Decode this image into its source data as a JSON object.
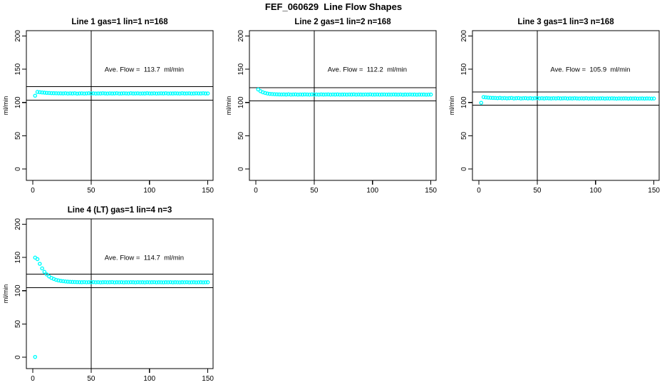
{
  "page": {
    "title": "FEF_060629  Line Flow Shapes"
  },
  "colors": {
    "marker": "#00ffff",
    "axis": "#000000",
    "background": "#ffffff"
  },
  "chart_data": [
    {
      "type": "scatter",
      "name": "line1",
      "title": "Line 1 gas=1 lin=1 n=168",
      "annotation": "Ave. Flow =  113.7  ml/min",
      "ave_flow": 113.7,
      "xlabel": "",
      "ylabel": "ml/min",
      "x_ticks": [
        0,
        50,
        100,
        150
      ],
      "y_ticks": [
        0,
        50,
        100,
        150,
        200
      ],
      "xlim": [
        -5.5,
        154.5
      ],
      "ylim": [
        -17,
        208
      ],
      "vline_x": 50,
      "hlines": [
        103.7,
        123.7
      ],
      "x_start": 2,
      "x_step": 2,
      "y_values": [
        110.2,
        115.9,
        115.5,
        115.1,
        114.8,
        114.5,
        114.3,
        114.1,
        114.0,
        113.9,
        113.8,
        113.8,
        113.7,
        113.9,
        113.5,
        113.8,
        113.6,
        113.9,
        113.4,
        113.7,
        113.8,
        113.5,
        113.7,
        113.9,
        113.6,
        113.8,
        113.5,
        113.7,
        113.6,
        113.9,
        113.7,
        113.5,
        113.8,
        113.6,
        113.7,
        113.9,
        113.5,
        113.6,
        113.8,
        113.7,
        113.5,
        113.9,
        113.6,
        113.7,
        113.8,
        113.5,
        113.7,
        113.6,
        113.9,
        113.7,
        113.6,
        113.8,
        113.5,
        113.7,
        113.8,
        113.6,
        113.9,
        113.5,
        113.7,
        113.6,
        113.8,
        113.7,
        113.5,
        113.9,
        113.6,
        113.7,
        113.8,
        113.5,
        113.6,
        113.8,
        113.7,
        113.6,
        113.9,
        113.6,
        113.7
      ],
      "extra_points": []
    },
    {
      "type": "scatter",
      "name": "line2",
      "title": "Line 2 gas=1 lin=2 n=168",
      "annotation": "Ave. Flow =  112.2  ml/min",
      "ave_flow": 112.2,
      "xlabel": "",
      "ylabel": "ml/min",
      "x_ticks": [
        0,
        50,
        100,
        150
      ],
      "y_ticks": [
        0,
        50,
        100,
        150,
        200
      ],
      "xlim": [
        -5.5,
        154.5
      ],
      "ylim": [
        -17,
        208
      ],
      "vline_x": 50,
      "hlines": [
        102.2,
        122.2
      ],
      "x_start": 2,
      "x_step": 2,
      "y_values": [
        119.6,
        117.1,
        115.4,
        114.3,
        113.5,
        113.0,
        112.7,
        112.5,
        112.3,
        112.2,
        112.1,
        112.2,
        112.0,
        112.3,
        111.9,
        112.1,
        112.2,
        111.9,
        112.1,
        112.0,
        112.2,
        112.1,
        111.9,
        112.2,
        112.0,
        112.1,
        111.9,
        112.2,
        112.0,
        112.1,
        112.2,
        111.9,
        112.1,
        112.0,
        112.2,
        111.9,
        112.0,
        112.1,
        111.9,
        112.1,
        112.0,
        112.2,
        111.9,
        112.1,
        112.0,
        111.9,
        112.1,
        112.0,
        112.2,
        111.9,
        112.0,
        112.1,
        111.9,
        112.0,
        112.1,
        111.9,
        112.0,
        111.9,
        112.1,
        112.0,
        111.9,
        112.1,
        111.8,
        112.0,
        111.9,
        112.1,
        111.9,
        112.0,
        111.8,
        112.0,
        111.9,
        112.0,
        111.8,
        111.9,
        112.0
      ],
      "extra_points": []
    },
    {
      "type": "scatter",
      "name": "line3",
      "title": "Line 3 gas=1 lin=3 n=168",
      "annotation": "Ave. Flow =  105.9  ml/min",
      "ave_flow": 105.9,
      "xlabel": "",
      "ylabel": "ml/min",
      "x_ticks": [
        0,
        50,
        100,
        150
      ],
      "y_ticks": [
        0,
        50,
        100,
        150,
        200
      ],
      "xlim": [
        -5.5,
        154.5
      ],
      "ylim": [
        -17,
        208
      ],
      "vline_x": 50,
      "hlines": [
        95.9,
        115.9
      ],
      "x_start": 2,
      "x_step": 2,
      "y_values": [
        99.6,
        108.2,
        107.8,
        107.4,
        107.1,
        106.9,
        106.8,
        106.6,
        106.9,
        106.4,
        106.7,
        106.3,
        106.6,
        106.8,
        106.2,
        106.5,
        106.7,
        106.1,
        106.4,
        106.6,
        106.2,
        106.5,
        106.1,
        106.4,
        106.6,
        106.2,
        106.4,
        106.1,
        106.5,
        106.3,
        106.1,
        106.4,
        106.2,
        106.5,
        106.1,
        106.3,
        106.4,
        106.0,
        106.3,
        106.1,
        106.4,
        106.2,
        106.0,
        106.3,
        106.1,
        106.4,
        106.0,
        106.2,
        106.3,
        106.0,
        106.2,
        106.1,
        106.3,
        105.9,
        106.2,
        106.0,
        106.3,
        106.1,
        105.9,
        106.2,
        106.0,
        106.1,
        106.2,
        105.9,
        106.1,
        106.0,
        106.2,
        105.9,
        106.0,
        106.1,
        105.9,
        106.1,
        106.0,
        105.9,
        106.0
      ],
      "extra_points": []
    },
    {
      "type": "scatter",
      "name": "line4",
      "title": "Line 4 (LT) gas=1 lin=4 n=3",
      "annotation": "Ave. Flow =  114.7  ml/min",
      "ave_flow": 114.7,
      "xlabel": "",
      "ylabel": "ml/min",
      "x_ticks": [
        0,
        50,
        100,
        150
      ],
      "y_ticks": [
        0,
        50,
        100,
        150,
        200
      ],
      "xlim": [
        -5.5,
        154.5
      ],
      "ylim": [
        -17,
        208
      ],
      "vline_x": 50,
      "hlines": [
        104.7,
        124.7
      ],
      "x_start": 2,
      "x_step": 2,
      "y_values": [
        149.8,
        147.5,
        140.5,
        133.6,
        128.4,
        124.5,
        121.5,
        119.3,
        117.7,
        116.4,
        115.5,
        114.8,
        114.3,
        113.9,
        113.6,
        113.4,
        113.2,
        113.1,
        113.0,
        112.9,
        112.8,
        113.0,
        112.7,
        112.9,
        112.8,
        113.0,
        112.7,
        112.9,
        112.6,
        112.8,
        112.9,
        112.7,
        112.8,
        113.0,
        112.6,
        112.8,
        112.7,
        112.9,
        112.6,
        112.8,
        112.7,
        112.9,
        112.8,
        112.6,
        112.9,
        112.7,
        112.8,
        112.6,
        112.9,
        112.7,
        112.8,
        112.9,
        112.6,
        112.8,
        112.7,
        112.6,
        112.8,
        112.7,
        112.9,
        112.6,
        112.8,
        112.7,
        112.6,
        112.8,
        112.7,
        112.9,
        112.6,
        112.7,
        112.8,
        112.6,
        112.7,
        112.8,
        112.6,
        112.7,
        112.8
      ],
      "extra_points": [
        [
          2,
          0.5
        ]
      ]
    }
  ]
}
